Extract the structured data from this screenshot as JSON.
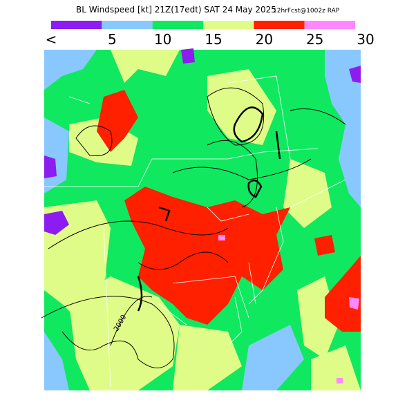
{
  "header": {
    "title": "BL Windspeed [kt] 21Z(17edt) SAT 24 May 2025",
    "subtitle": "12hrFcst@1002z RAP"
  },
  "colorbar": {
    "colors": [
      "#8c1cf0",
      "#88c8ff",
      "#10e860",
      "#e0fc88",
      "#ff2000",
      "#ff88ff"
    ],
    "labels": [
      "<",
      "5",
      "10",
      "15",
      "20",
      "25",
      "30"
    ]
  },
  "map": {
    "contour_label": "2000"
  }
}
